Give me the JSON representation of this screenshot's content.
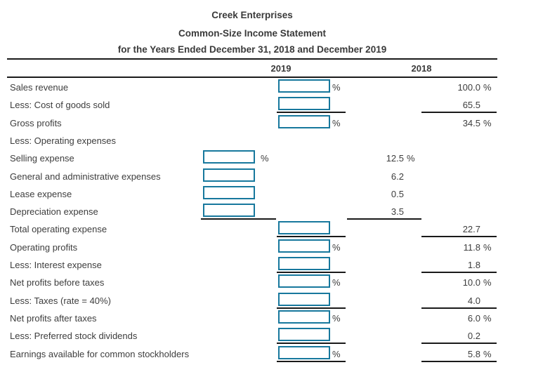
{
  "title": {
    "line1": "Creek Enterprises",
    "line2": "Common-Size Income Statement",
    "line3": "for the Years Ended December 31, 2018 and December 2019"
  },
  "columns": {
    "col_2019": "2019",
    "col_2018": "2018"
  },
  "percent_symbol": "%",
  "colors": {
    "input_border": "#17789d",
    "rule": "#1a1a1a",
    "text": "#3d3d3d"
  },
  "rows": [
    {
      "label": "Sales revenue",
      "box": "main",
      "box_pct": true,
      "value": "100.0",
      "value_pct": true,
      "value_col": "right",
      "underline": false
    },
    {
      "label": "Less: Cost of goods sold",
      "box": "main",
      "box_pct": false,
      "value": "65.5",
      "value_pct": false,
      "value_col": "right",
      "underline": true
    },
    {
      "label": "Gross profits",
      "box": "main",
      "box_pct": true,
      "value": "34.5",
      "value_pct": true,
      "value_col": "right",
      "underline": false
    },
    {
      "label": "Less: Operating expenses",
      "box": null,
      "box_pct": false,
      "value": null,
      "value_pct": false,
      "value_col": null,
      "underline": false
    },
    {
      "label": "Selling expense",
      "box": "indent",
      "box_pct": true,
      "value": "12.5",
      "value_pct": true,
      "value_col": "mid",
      "underline": false
    },
    {
      "label": "General and administrative expenses",
      "box": "indent",
      "box_pct": false,
      "value": "6.2",
      "value_pct": false,
      "value_col": "mid",
      "underline": false
    },
    {
      "label": "Lease expense",
      "box": "indent",
      "box_pct": false,
      "value": "0.5",
      "value_pct": false,
      "value_col": "mid",
      "underline": false
    },
    {
      "label": "Depreciation expense",
      "box": "indent",
      "box_pct": false,
      "value": "3.5",
      "value_pct": false,
      "value_col": "mid",
      "underline": true
    },
    {
      "label": "Total operating expense",
      "box": "main",
      "box_pct": false,
      "value": "22.7",
      "value_pct": false,
      "value_col": "right",
      "underline": true
    },
    {
      "label": "Operating profits",
      "box": "main",
      "box_pct": true,
      "value": "11.8",
      "value_pct": true,
      "value_col": "right",
      "underline": false
    },
    {
      "label": "Less: Interest expense",
      "box": "main",
      "box_pct": false,
      "value": "1.8",
      "value_pct": false,
      "value_col": "right",
      "underline": true
    },
    {
      "label": "Net profits before taxes",
      "box": "main",
      "box_pct": true,
      "value": "10.0",
      "value_pct": true,
      "value_col": "right",
      "underline": false
    },
    {
      "label": "Less: Taxes (rate = 40%)",
      "box": "main",
      "box_pct": false,
      "value": "4.0",
      "value_pct": false,
      "value_col": "right",
      "underline": true
    },
    {
      "label": "Net profits after taxes",
      "box": "main",
      "box_pct": true,
      "value": "6.0",
      "value_pct": true,
      "value_col": "right",
      "underline": false
    },
    {
      "label": "Less: Preferred stock dividends",
      "box": "main",
      "box_pct": false,
      "value": "0.2",
      "value_pct": false,
      "value_col": "right",
      "underline": true
    },
    {
      "label": "Earnings available for common stockholders",
      "box": "main",
      "box_pct": true,
      "value": "5.8",
      "value_pct": true,
      "value_col": "right",
      "underline": true
    }
  ]
}
